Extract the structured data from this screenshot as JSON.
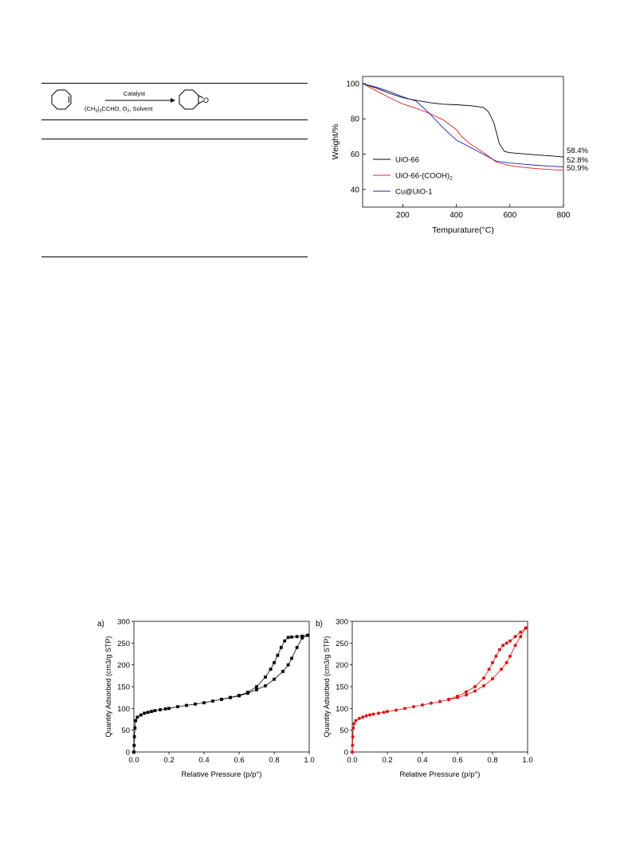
{
  "scheme": {
    "arrow_top": "Catalyst",
    "arrow_bottom_parts": [
      "(CH",
      "3",
      ")",
      "3",
      "CCHO, O",
      "2",
      ", Solvent"
    ],
    "epoxide_atom": "O"
  },
  "chart_data": [
    {
      "type": "line",
      "title": "",
      "xlabel": "Tempurature(°C)",
      "ylabel": "Weight/%",
      "xlim": [
        50,
        800
      ],
      "ylim": [
        30,
        104
      ],
      "xticks": [
        200,
        400,
        600,
        800
      ],
      "yticks": [
        40,
        60,
        80,
        100
      ],
      "legend_position": "bottom-left",
      "grid": false,
      "series": [
        {
          "name": "UiO-66",
          "color": "#000000",
          "x": [
            50,
            100,
            150,
            200,
            250,
            300,
            350,
            400,
            450,
            500,
            520,
            540,
            560,
            580,
            600,
            650,
            700,
            750,
            800
          ],
          "y": [
            100,
            97.5,
            94.5,
            92,
            90.5,
            89.2,
            88.3,
            88,
            87.5,
            86.5,
            84,
            78,
            66,
            61.5,
            60.8,
            60.2,
            59.6,
            59,
            58.4
          ]
        },
        {
          "name": "UiO-66-(COOH)2",
          "color": "#e02020",
          "x": [
            50,
            100,
            150,
            200,
            250,
            300,
            350,
            400,
            420,
            450,
            500,
            550,
            600,
            650,
            700,
            750,
            800
          ],
          "y": [
            100,
            96,
            92,
            88.5,
            86,
            83,
            79.5,
            74,
            70,
            66,
            61,
            55.5,
            53.5,
            52.5,
            51.8,
            51.3,
            50.9
          ]
        },
        {
          "name": "Cu@UiO-1",
          "color": "#2020b0",
          "x": [
            50,
            100,
            150,
            200,
            250,
            300,
            350,
            400,
            450,
            500,
            550,
            600,
            650,
            700,
            750,
            800
          ],
          "y": [
            100,
            98,
            95.5,
            92.5,
            90,
            83,
            75,
            68,
            64,
            60,
            56,
            55,
            54.3,
            53.7,
            53.2,
            52.8
          ]
        }
      ],
      "annotations": [
        "58.4%",
        "52.8%",
        "50.9%"
      ]
    },
    {
      "type": "scatter",
      "panel_label": "a)",
      "xlabel": "Relative Pressure (p/p°)",
      "ylabel": "Quantity Adsorbed (cm3/g STP)",
      "xlim": [
        0,
        1.0
      ],
      "ylim": [
        0,
        300
      ],
      "xticks": [
        "0.0",
        "0.2",
        "0.4",
        "0.6",
        "0.8",
        "1.0"
      ],
      "yticks": [
        "0",
        "50",
        "100",
        "150",
        "200",
        "250",
        "300"
      ],
      "color": "#000000",
      "series": [
        {
          "x": [
            0.0,
            0.0015,
            0.003,
            0.006,
            0.01,
            0.02,
            0.04,
            0.06,
            0.08,
            0.1,
            0.12,
            0.15,
            0.18,
            0.2,
            0.25,
            0.3,
            0.35,
            0.4,
            0.45,
            0.5,
            0.55,
            0.6,
            0.65,
            0.7,
            0.75,
            0.8,
            0.85,
            0.88,
            0.9,
            0.93,
            0.96,
            0.99
          ],
          "y": [
            0,
            15,
            35,
            55,
            72,
            80,
            85,
            89,
            91,
            93,
            95,
            97,
            99,
            100,
            104,
            107,
            110,
            113,
            117,
            121,
            125,
            129,
            135,
            143,
            152,
            167,
            185,
            200,
            215,
            240,
            262,
            268
          ]
        },
        {
          "x": [
            0.99,
            0.96,
            0.93,
            0.9,
            0.88,
            0.86,
            0.84,
            0.82,
            0.8,
            0.78,
            0.75,
            0.7,
            0.65,
            0.6,
            0.55,
            0.5
          ],
          "y": [
            268,
            266,
            265,
            264,
            263,
            255,
            240,
            222,
            205,
            190,
            172,
            150,
            137,
            130,
            125,
            121
          ]
        }
      ]
    },
    {
      "type": "scatter",
      "panel_label": "b)",
      "xlabel": "Relative Pressure (p/p°)",
      "ylabel": "Quantity Adsorbed (cm3/g STP)",
      "xlim": [
        0,
        1.0
      ],
      "ylim": [
        0,
        300
      ],
      "xticks": [
        "0.0",
        "0.2",
        "0.4",
        "0.6",
        "0.8",
        "1.0"
      ],
      "yticks": [
        "0",
        "50",
        "100",
        "150",
        "200",
        "250",
        "300"
      ],
      "color": "#e01010",
      "series": [
        {
          "x": [
            0.0,
            0.0015,
            0.003,
            0.006,
            0.01,
            0.02,
            0.04,
            0.06,
            0.08,
            0.1,
            0.12,
            0.15,
            0.18,
            0.2,
            0.25,
            0.3,
            0.35,
            0.4,
            0.45,
            0.5,
            0.55,
            0.6,
            0.65,
            0.7,
            0.75,
            0.8,
            0.85,
            0.88,
            0.9,
            0.93,
            0.96,
            0.99
          ],
          "y": [
            0,
            15,
            35,
            55,
            65,
            72,
            77,
            80,
            83,
            85,
            87,
            89,
            91,
            93,
            96,
            100,
            104,
            108,
            112,
            116,
            120,
            125,
            131,
            140,
            152,
            168,
            190,
            205,
            220,
            245,
            265,
            285
          ]
        },
        {
          "x": [
            0.99,
            0.96,
            0.93,
            0.9,
            0.88,
            0.86,
            0.84,
            0.82,
            0.8,
            0.78,
            0.75,
            0.7,
            0.65,
            0.6,
            0.55
          ],
          "y": [
            285,
            275,
            265,
            255,
            250,
            245,
            235,
            220,
            205,
            190,
            170,
            150,
            138,
            128,
            121
          ]
        }
      ]
    }
  ]
}
